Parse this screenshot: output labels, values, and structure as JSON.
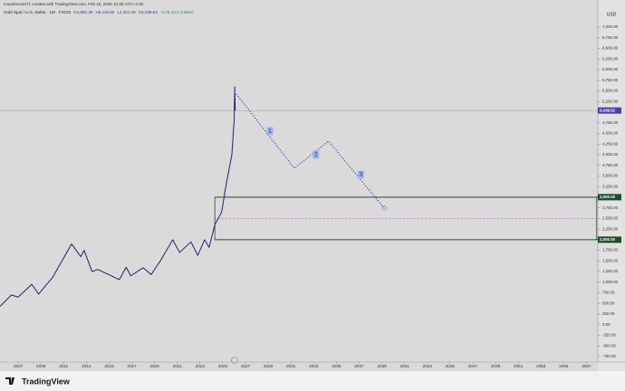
{
  "chart_data": {
    "type": "line",
    "header": "moeshreza371 created with TradingView.com, Feb 15, 2026 10:30 UTC+3:30",
    "title": "Gold Spot / U.S. Dollar · 1M · FXCM",
    "ohlc": [
      "O4,860.39",
      "H5,118.80",
      "L4,401.05",
      "C5,038.52",
      "+178.13 (+3.66%)"
    ],
    "currency": "USD",
    "footer": "TradingView",
    "color": "#23236b",
    "x": [
      2005.4,
      2006.4,
      2007.0,
      2008.2,
      2008.8,
      2009.5,
      2010.0,
      2011.7,
      2012.5,
      2012.8,
      2013.5,
      2014.0,
      2015.9,
      2016.5,
      2016.9,
      2018.0,
      2018.7,
      2019.5,
      2020.6,
      2021.2,
      2022.2,
      2022.8,
      2023.4,
      2023.8,
      2024.3,
      2024.9,
      2025.3,
      2025.8,
      2026.0,
      2026.05,
      2026.1
    ],
    "values": [
      430,
      700,
      650,
      950,
      720,
      950,
      1100,
      1900,
      1600,
      1750,
      1250,
      1300,
      1060,
      1350,
      1150,
      1340,
      1180,
      1500,
      2000,
      1700,
      1950,
      1630,
      2000,
      1820,
      2350,
      2650,
      3300,
      4000,
      4800,
      5595,
      5038
    ],
    "last_price": {
      "value": 5038.52,
      "label": "5,038.52"
    },
    "projection": {
      "x": [
        2026.2,
        2031.3,
        2034.3,
        2039.2
      ],
      "values": [
        5426,
        3681,
        4319,
        2745
      ],
      "labels": [
        "1",
        "2",
        "3"
      ]
    },
    "zone": {
      "x": [
        2024.3,
        2057.9
      ],
      "values": [
        3000,
        2000
      ],
      "value_labels": [
        "3,000.00",
        "2,000.00"
      ]
    },
    "xlim": [
      2005.4,
      2058
    ],
    "ylim": [
      -1050,
      7000
    ],
    "xticks": [
      2007,
      2009,
      2011,
      2013,
      2015,
      2017,
      2019,
      2021,
      2023,
      2025,
      2027,
      2029,
      2031,
      2033,
      2035,
      2037,
      2039,
      2041,
      2043,
      2045,
      2047,
      2049,
      2051,
      2053,
      2055,
      2057
    ],
    "yticks": [
      {
        "value": 7000,
        "label": "7,000.00"
      },
      {
        "value": 6750,
        "label": "6,750.00"
      },
      {
        "value": 6500,
        "label": "6,500.00"
      },
      {
        "value": 6250,
        "label": "6,250.00"
      },
      {
        "value": 6000,
        "label": "6,000.00"
      },
      {
        "value": 5750,
        "label": "5,750.00"
      },
      {
        "value": 5500,
        "label": "5,500.00"
      },
      {
        "value": 5250,
        "label": "5,250.00"
      },
      {
        "value": 4750,
        "label": "4,750.00"
      },
      {
        "value": 4500,
        "label": "4,500.00"
      },
      {
        "value": 4250,
        "label": "4,250.00"
      },
      {
        "value": 4000,
        "label": "4,000.00"
      },
      {
        "value": 3750,
        "label": "3,750.00"
      },
      {
        "value": 3500,
        "label": "3,500.00"
      },
      {
        "value": 3250,
        "label": "3,250.00"
      },
      {
        "value": 2750,
        "label": "2,750.00"
      },
      {
        "value": 2500,
        "label": "2,500.00"
      },
      {
        "value": 2250,
        "label": "2,250.00"
      },
      {
        "value": 1750,
        "label": "1,750.00"
      },
      {
        "value": 1500,
        "label": "1,500.00"
      },
      {
        "value": 1250,
        "label": "1,250.00"
      },
      {
        "value": 1000,
        "label": "1,000.00"
      },
      {
        "value": 750,
        "label": "750.00"
      },
      {
        "value": 500,
        "label": "500.00"
      },
      {
        "value": 250,
        "label": "250.00"
      },
      {
        "value": 0,
        "label": "0.00"
      },
      {
        "value": -250,
        "label": "-250.00"
      },
      {
        "value": -500,
        "label": "-500.00"
      },
      {
        "value": -750,
        "label": "-750.00"
      }
    ]
  }
}
